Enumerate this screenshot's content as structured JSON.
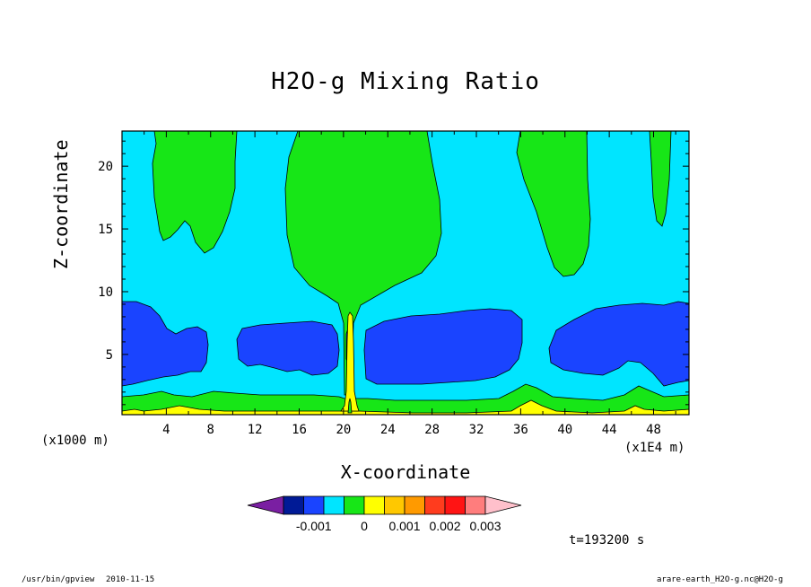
{
  "chart_data": {
    "type": "heatmap",
    "title": "H2O-g Mixing Ratio",
    "xlabel": "X-coordinate",
    "ylabel": "Z-coordinate",
    "x_unit": "(x1000 m)",
    "x_scale": "(x1E4 m)",
    "xlim": [
      0,
      51.2
    ],
    "ylim": [
      0.2,
      22.8
    ],
    "x_ticks": [
      "4",
      "8",
      "12",
      "16",
      "20",
      "24",
      "28",
      "32",
      "36",
      "40",
      "44",
      "48"
    ],
    "y_ticks": [
      "5",
      "10",
      "15",
      "20"
    ],
    "colorbar": {
      "colors": [
        "#7a1fa2",
        "#001a96",
        "#1a44ff",
        "#00e5ff",
        "#17e617",
        "#ffff00",
        "#ffc800",
        "#ff9a00",
        "#ff3c1e",
        "#ff1414",
        "#ff7d7d",
        "#ffc0cb"
      ],
      "tick_labels": [
        "-0.001",
        "0",
        "0.001",
        "0.002",
        "0.003"
      ]
    },
    "time_label": "t=193200 s"
  },
  "footer": {
    "program": "/usr/bin/gpview",
    "date": "2010-11-15",
    "source": "arare-earth_H2O-g.nc@H2O-g"
  }
}
